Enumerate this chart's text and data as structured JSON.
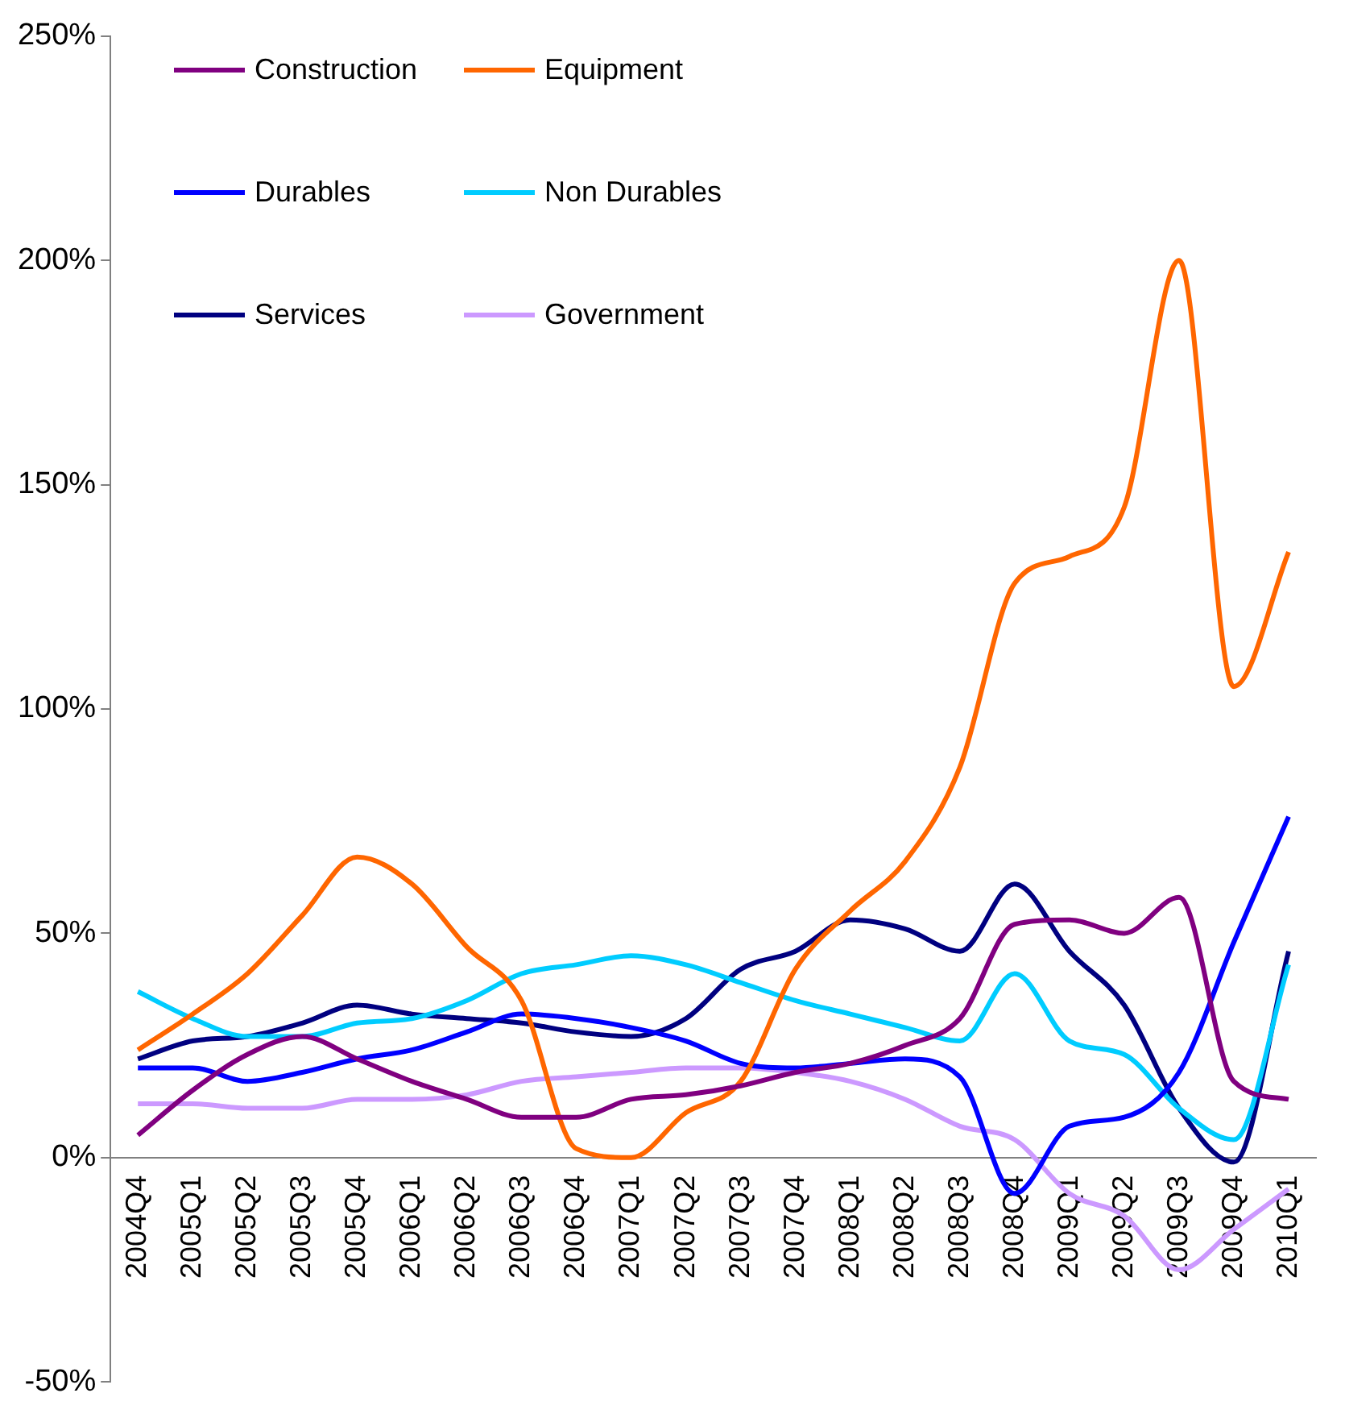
{
  "chart_data": {
    "type": "line",
    "categories": [
      "2004Q4",
      "2005Q1",
      "2005Q2",
      "2005Q3",
      "2005Q4",
      "2006Q1",
      "2006Q2",
      "2006Q3",
      "2006Q4",
      "2007Q1",
      "2007Q2",
      "2007Q3",
      "2007Q4",
      "2008Q1",
      "2008Q2",
      "2008Q3",
      "2008Q4",
      "2009Q1",
      "2009Q2",
      "2009Q3",
      "2009Q4",
      "2010Q1"
    ],
    "series": [
      {
        "name": "Construction",
        "color": "#800080",
        "values": [
          5,
          15,
          23,
          27,
          22,
          17,
          13,
          9,
          9,
          13,
          14,
          16,
          19,
          21,
          25,
          31,
          52,
          53,
          50,
          58,
          17,
          13
        ]
      },
      {
        "name": "Equipment",
        "color": "#ff6600",
        "values": [
          24,
          32,
          41,
          54,
          67,
          61,
          47,
          35,
          2,
          0,
          10,
          17,
          42,
          55,
          66,
          87,
          128,
          134,
          145,
          200,
          105,
          135
        ]
      },
      {
        "name": "Durables",
        "color": "#0000ff",
        "values": [
          20,
          20,
          17,
          19,
          22,
          24,
          28,
          32,
          31,
          29,
          26,
          21,
          20,
          21,
          22,
          18,
          -8,
          7,
          9,
          19,
          48,
          76
        ]
      },
      {
        "name": "Non Durables",
        "color": "#00ccff",
        "values": [
          37,
          31,
          27,
          27,
          30,
          31,
          35,
          41,
          43,
          45,
          43,
          39,
          35,
          32,
          29,
          26,
          41,
          26,
          23,
          11,
          4,
          43
        ]
      },
      {
        "name": "Services",
        "color": "#000080",
        "values": [
          22,
          26,
          27,
          30,
          34,
          32,
          31,
          30,
          28,
          27,
          31,
          42,
          46,
          53,
          51,
          46,
          61,
          46,
          34,
          11,
          -1,
          46
        ]
      },
      {
        "name": "Government",
        "color": "#cc99ff",
        "values": [
          12,
          12,
          11,
          11,
          13,
          13,
          14,
          17,
          18,
          19,
          20,
          20,
          19,
          17,
          13,
          7,
          4,
          -8,
          -13,
          -25,
          -16,
          -7
        ]
      }
    ],
    "ylim": [
      -50,
      250
    ],
    "yticks": [
      {
        "value": -50,
        "label": "-50%"
      },
      {
        "value": 0,
        "label": "0%"
      },
      {
        "value": 50,
        "label": "50%"
      },
      {
        "value": 100,
        "label": "100%"
      },
      {
        "value": 150,
        "label": "150%"
      },
      {
        "value": 200,
        "label": "200%"
      },
      {
        "value": 250,
        "label": "250%"
      }
    ],
    "grid": false,
    "legend": "top left",
    "marker": "none",
    "line_style": "solid"
  }
}
